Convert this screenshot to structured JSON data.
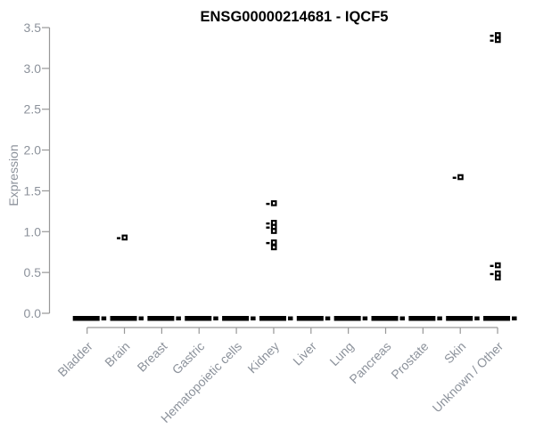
{
  "chart_data": {
    "type": "scatter",
    "title": "ENSG00000214681 - IQCF5",
    "ylabel": "Expression",
    "xlabel": "",
    "ylim": [
      0.0,
      3.5
    ],
    "ytick_labels": [
      "0.0",
      "0.5",
      "1.0",
      "1.5",
      "2.0",
      "2.5",
      "3.0",
      "3.5"
    ],
    "ytick_step": 0.5,
    "grid": "off",
    "legend": "none",
    "marker_style": "small open black squares; dense overlapping samples at 0 form thick black dashes per category",
    "categories": [
      "Bladder",
      "Brain",
      "Breast",
      "Gastric",
      "Hematopoietic cells",
      "Kidney",
      "Liver",
      "Lung",
      "Pancreas",
      "Prostate",
      "Skin",
      "Unknown / Other"
    ],
    "series": [
      {
        "category": "Bladder",
        "zero_cluster": true,
        "points": []
      },
      {
        "category": "Brain",
        "zero_cluster": true,
        "points": [
          {
            "value": 0.92,
            "overlap_dash": true
          }
        ]
      },
      {
        "category": "Breast",
        "zero_cluster": true,
        "points": []
      },
      {
        "category": "Gastric",
        "zero_cluster": true,
        "points": []
      },
      {
        "category": "Hematopoietic cells",
        "zero_cluster": true,
        "points": []
      },
      {
        "category": "Kidney",
        "zero_cluster": true,
        "points": [
          {
            "value": 1.34,
            "overlap_dash": true
          },
          {
            "value": 1.1,
            "overlap_dash": true
          },
          {
            "value": 1.05,
            "overlap_dash": true
          },
          {
            "value": 1.0,
            "overlap_dash": false
          },
          {
            "value": 0.86,
            "overlap_dash": true
          },
          {
            "value": 0.8,
            "overlap_dash": false
          }
        ]
      },
      {
        "category": "Liver",
        "zero_cluster": true,
        "points": []
      },
      {
        "category": "Lung",
        "zero_cluster": true,
        "points": []
      },
      {
        "category": "Pancreas",
        "zero_cluster": true,
        "points": []
      },
      {
        "category": "Prostate",
        "zero_cluster": true,
        "points": []
      },
      {
        "category": "Skin",
        "zero_cluster": true,
        "points": [
          {
            "value": 1.66,
            "overlap_dash": true
          }
        ]
      },
      {
        "category": "Unknown / Other",
        "zero_cluster": true,
        "points": [
          {
            "value": 3.4,
            "overlap_dash": true
          },
          {
            "value": 3.34,
            "overlap_dash": true
          },
          {
            "value": 0.58,
            "overlap_dash": true
          },
          {
            "value": 0.48,
            "overlap_dash": true
          },
          {
            "value": 0.43,
            "overlap_dash": false
          }
        ]
      }
    ],
    "colors": {
      "marker": "#000000",
      "axis_line": "#989898",
      "axis_text": "#8c929b",
      "title": "#000000",
      "background": "#ffffff"
    }
  }
}
